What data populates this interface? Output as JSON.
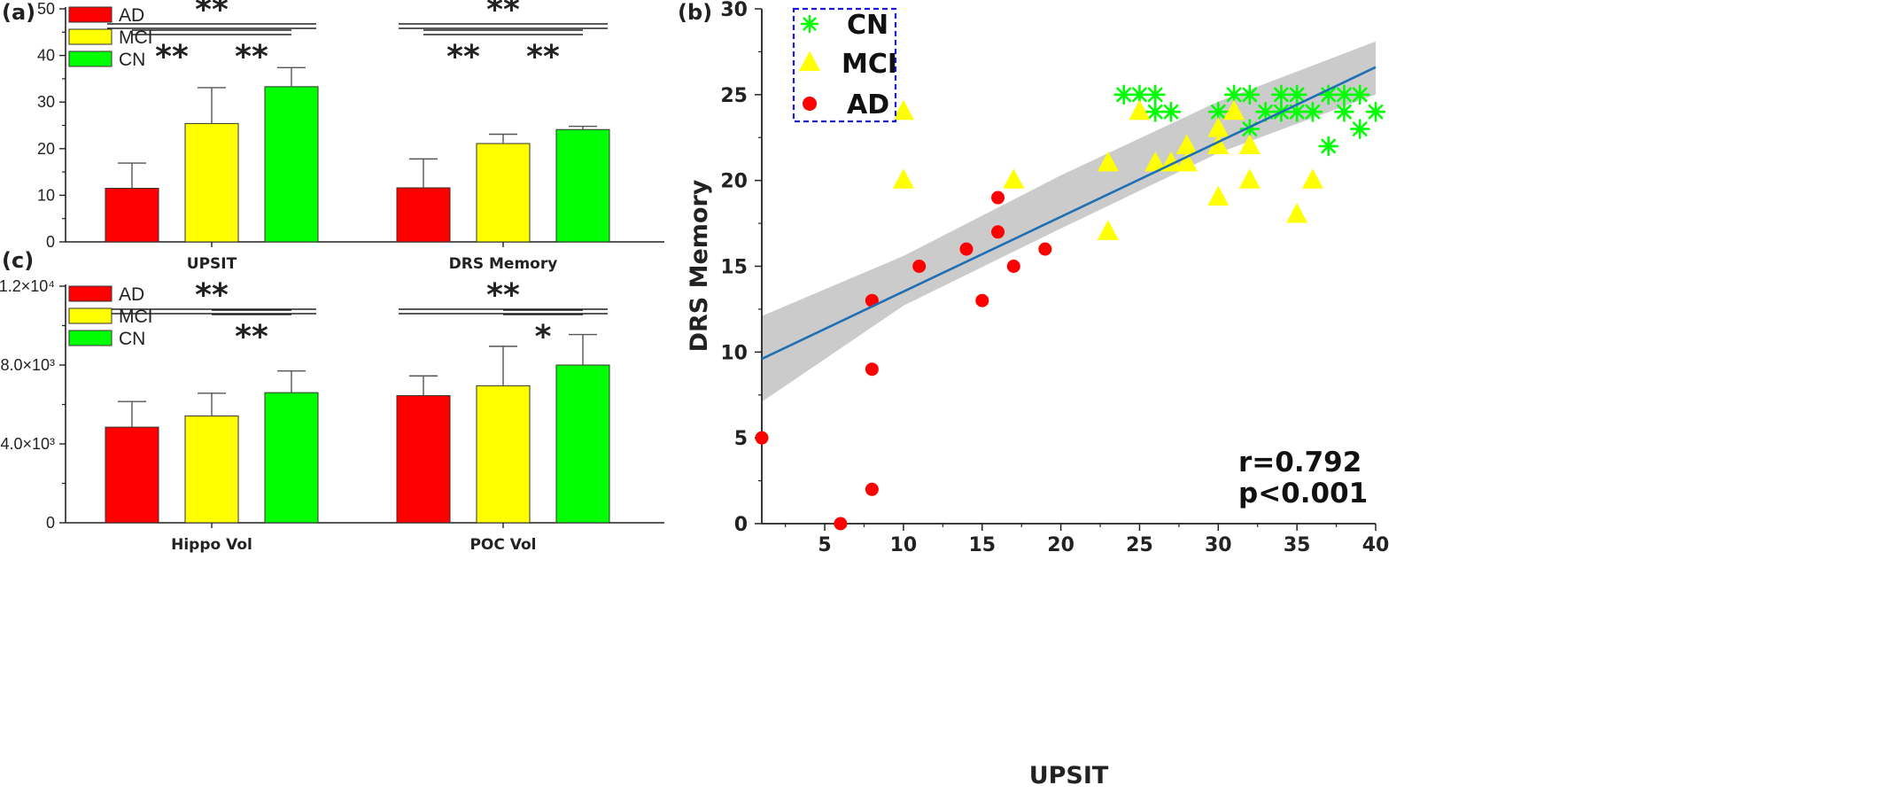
{
  "colors": {
    "AD": "#ff0000",
    "MCI": "#ffff00",
    "CN": "#00ff00",
    "fit_line": "#1f6fb5",
    "band": "#bdbdbd",
    "legend_box": "#1a1ad6"
  },
  "chart_data": [
    {
      "panel": "(a)",
      "type": "bar",
      "categories": [
        "UPSIT",
        "DRS Memory"
      ],
      "series": [
        {
          "name": "AD",
          "values": [
            11.5,
            11.6
          ],
          "errors": [
            5.4,
            6.2
          ]
        },
        {
          "name": "MCI",
          "values": [
            25.4,
            21.1
          ],
          "errors": [
            7.7,
            2.0
          ]
        },
        {
          "name": "CN",
          "values": [
            33.3,
            24.1
          ],
          "errors": [
            4.1,
            0.7
          ]
        }
      ],
      "ylim": [
        0,
        50
      ],
      "yticks": [
        0,
        10,
        20,
        30,
        40,
        50
      ],
      "ytick_labels": [
        "0",
        "10",
        "20",
        "30",
        "40",
        "50"
      ],
      "legend": "top-left",
      "significance": [
        {
          "group": 0,
          "from": "AD",
          "to": "CN",
          "label": "**",
          "level": 2
        },
        {
          "group": 0,
          "from": "AD",
          "to": "MCI",
          "label": "**",
          "level": 1
        },
        {
          "group": 0,
          "from": "MCI",
          "to": "CN",
          "label": "**",
          "level": 1
        },
        {
          "group": 1,
          "from": "AD",
          "to": "CN",
          "label": "**",
          "level": 2
        },
        {
          "group": 1,
          "from": "AD",
          "to": "MCI",
          "label": "**",
          "level": 1
        },
        {
          "group": 1,
          "from": "MCI",
          "to": "CN",
          "label": "**",
          "level": 1
        }
      ]
    },
    {
      "panel": "(c)",
      "type": "bar",
      "categories": [
        "Hippo Vol",
        "POC Vol"
      ],
      "series": [
        {
          "name": "AD",
          "values": [
            4850,
            6450
          ],
          "errors": [
            1300,
            1000
          ]
        },
        {
          "name": "MCI",
          "values": [
            5420,
            6950
          ],
          "errors": [
            1150,
            2000
          ]
        },
        {
          "name": "CN",
          "values": [
            6600,
            8000
          ],
          "errors": [
            1100,
            1550
          ]
        }
      ],
      "ylim": [
        0,
        12000
      ],
      "yticks": [
        0,
        4000,
        8000,
        12000
      ],
      "ytick_labels": [
        "0",
        "4.0×10³",
        "8.0×10³",
        "1.2×10⁴"
      ],
      "legend": "top-left",
      "significance": [
        {
          "group": 0,
          "from": "AD",
          "to": "CN",
          "label": "**",
          "level": 2
        },
        {
          "group": 0,
          "from": "MCI",
          "to": "CN",
          "label": "**",
          "level": 1
        },
        {
          "group": 1,
          "from": "AD",
          "to": "CN",
          "label": "**",
          "level": 2
        },
        {
          "group": 1,
          "from": "MCI",
          "to": "CN",
          "label": "*",
          "level": 1
        }
      ]
    },
    {
      "panel": "(b)",
      "type": "scatter",
      "xlabel": "UPSIT",
      "ylabel": "DRS Memory",
      "xlim": [
        1,
        40
      ],
      "ylim": [
        0,
        30
      ],
      "xticks": [
        5,
        10,
        15,
        20,
        25,
        30,
        35,
        40
      ],
      "yticks": [
        0,
        5,
        10,
        15,
        20,
        25,
        30
      ],
      "legend": "top-left",
      "series": [
        {
          "name": "CN",
          "marker": "asterisk",
          "points": [
            [
              24,
              25
            ],
            [
              25,
              25
            ],
            [
              26,
              25
            ],
            [
              26,
              24
            ],
            [
              27,
              24
            ],
            [
              30,
              24
            ],
            [
              31,
              25
            ],
            [
              32,
              25
            ],
            [
              32,
              23
            ],
            [
              33,
              24
            ],
            [
              34,
              24
            ],
            [
              34,
              25
            ],
            [
              35,
              24
            ],
            [
              35,
              25
            ],
            [
              36,
              24
            ],
            [
              37,
              25
            ],
            [
              37,
              22
            ],
            [
              38,
              25
            ],
            [
              38,
              24
            ],
            [
              39,
              25
            ],
            [
              39,
              23
            ],
            [
              40,
              24
            ]
          ]
        },
        {
          "name": "MCI",
          "marker": "triangle",
          "points": [
            [
              10,
              24
            ],
            [
              10,
              20
            ],
            [
              17,
              20
            ],
            [
              23,
              21
            ],
            [
              23,
              17
            ],
            [
              25,
              24
            ],
            [
              26,
              21
            ],
            [
              27,
              21
            ],
            [
              28,
              22
            ],
            [
              28,
              21
            ],
            [
              30,
              23
            ],
            [
              30,
              22
            ],
            [
              30,
              19
            ],
            [
              31,
              24
            ],
            [
              32,
              22
            ],
            [
              32,
              20
            ],
            [
              35,
              18
            ],
            [
              36,
              20
            ]
          ]
        },
        {
          "name": "AD",
          "marker": "circle",
          "points": [
            [
              1,
              5
            ],
            [
              6,
              0
            ],
            [
              8,
              13
            ],
            [
              8,
              9
            ],
            [
              8,
              2
            ],
            [
              11,
              15
            ],
            [
              14,
              16
            ],
            [
              15,
              13
            ],
            [
              16,
              19
            ],
            [
              16,
              17
            ],
            [
              17,
              15
            ],
            [
              19,
              16
            ]
          ]
        }
      ],
      "fit_line": {
        "x": [
          1,
          40
        ],
        "y": [
          9.6,
          26.6
        ]
      },
      "confidence_band": {
        "x": [
          1,
          10,
          20,
          30,
          40
        ],
        "lower": [
          7.1,
          12.7,
          17.2,
          21.6,
          25.0
        ],
        "upper": [
          12.1,
          15.6,
          20.3,
          24.6,
          28.1
        ]
      },
      "annotations": {
        "r": "r=0.792",
        "p": "p<0.001"
      }
    }
  ]
}
